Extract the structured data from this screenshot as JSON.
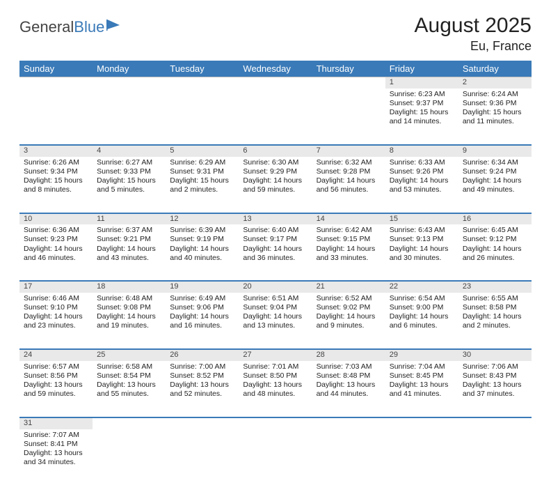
{
  "logo": {
    "text1": "General",
    "text2": "Blue"
  },
  "title": "August 2025",
  "location": "Eu, France",
  "dayHeaders": [
    "Sunday",
    "Monday",
    "Tuesday",
    "Wednesday",
    "Thursday",
    "Friday",
    "Saturday"
  ],
  "colors": {
    "headerBg": "#3a7ab8",
    "headerText": "#ffffff",
    "dayNumBg": "#e9e9e9",
    "rowDivider": "#3a7ab8",
    "pageBg": "#ffffff",
    "textColor": "#222222"
  },
  "weeks": [
    [
      null,
      null,
      null,
      null,
      null,
      {
        "n": "1",
        "sr": "Sunrise: 6:23 AM",
        "ss": "Sunset: 9:37 PM",
        "dl": "Daylight: 15 hours and 14 minutes."
      },
      {
        "n": "2",
        "sr": "Sunrise: 6:24 AM",
        "ss": "Sunset: 9:36 PM",
        "dl": "Daylight: 15 hours and 11 minutes."
      }
    ],
    [
      {
        "n": "3",
        "sr": "Sunrise: 6:26 AM",
        "ss": "Sunset: 9:34 PM",
        "dl": "Daylight: 15 hours and 8 minutes."
      },
      {
        "n": "4",
        "sr": "Sunrise: 6:27 AM",
        "ss": "Sunset: 9:33 PM",
        "dl": "Daylight: 15 hours and 5 minutes."
      },
      {
        "n": "5",
        "sr": "Sunrise: 6:29 AM",
        "ss": "Sunset: 9:31 PM",
        "dl": "Daylight: 15 hours and 2 minutes."
      },
      {
        "n": "6",
        "sr": "Sunrise: 6:30 AM",
        "ss": "Sunset: 9:29 PM",
        "dl": "Daylight: 14 hours and 59 minutes."
      },
      {
        "n": "7",
        "sr": "Sunrise: 6:32 AM",
        "ss": "Sunset: 9:28 PM",
        "dl": "Daylight: 14 hours and 56 minutes."
      },
      {
        "n": "8",
        "sr": "Sunrise: 6:33 AM",
        "ss": "Sunset: 9:26 PM",
        "dl": "Daylight: 14 hours and 53 minutes."
      },
      {
        "n": "9",
        "sr": "Sunrise: 6:34 AM",
        "ss": "Sunset: 9:24 PM",
        "dl": "Daylight: 14 hours and 49 minutes."
      }
    ],
    [
      {
        "n": "10",
        "sr": "Sunrise: 6:36 AM",
        "ss": "Sunset: 9:23 PM",
        "dl": "Daylight: 14 hours and 46 minutes."
      },
      {
        "n": "11",
        "sr": "Sunrise: 6:37 AM",
        "ss": "Sunset: 9:21 PM",
        "dl": "Daylight: 14 hours and 43 minutes."
      },
      {
        "n": "12",
        "sr": "Sunrise: 6:39 AM",
        "ss": "Sunset: 9:19 PM",
        "dl": "Daylight: 14 hours and 40 minutes."
      },
      {
        "n": "13",
        "sr": "Sunrise: 6:40 AM",
        "ss": "Sunset: 9:17 PM",
        "dl": "Daylight: 14 hours and 36 minutes."
      },
      {
        "n": "14",
        "sr": "Sunrise: 6:42 AM",
        "ss": "Sunset: 9:15 PM",
        "dl": "Daylight: 14 hours and 33 minutes."
      },
      {
        "n": "15",
        "sr": "Sunrise: 6:43 AM",
        "ss": "Sunset: 9:13 PM",
        "dl": "Daylight: 14 hours and 30 minutes."
      },
      {
        "n": "16",
        "sr": "Sunrise: 6:45 AM",
        "ss": "Sunset: 9:12 PM",
        "dl": "Daylight: 14 hours and 26 minutes."
      }
    ],
    [
      {
        "n": "17",
        "sr": "Sunrise: 6:46 AM",
        "ss": "Sunset: 9:10 PM",
        "dl": "Daylight: 14 hours and 23 minutes."
      },
      {
        "n": "18",
        "sr": "Sunrise: 6:48 AM",
        "ss": "Sunset: 9:08 PM",
        "dl": "Daylight: 14 hours and 19 minutes."
      },
      {
        "n": "19",
        "sr": "Sunrise: 6:49 AM",
        "ss": "Sunset: 9:06 PM",
        "dl": "Daylight: 14 hours and 16 minutes."
      },
      {
        "n": "20",
        "sr": "Sunrise: 6:51 AM",
        "ss": "Sunset: 9:04 PM",
        "dl": "Daylight: 14 hours and 13 minutes."
      },
      {
        "n": "21",
        "sr": "Sunrise: 6:52 AM",
        "ss": "Sunset: 9:02 PM",
        "dl": "Daylight: 14 hours and 9 minutes."
      },
      {
        "n": "22",
        "sr": "Sunrise: 6:54 AM",
        "ss": "Sunset: 9:00 PM",
        "dl": "Daylight: 14 hours and 6 minutes."
      },
      {
        "n": "23",
        "sr": "Sunrise: 6:55 AM",
        "ss": "Sunset: 8:58 PM",
        "dl": "Daylight: 14 hours and 2 minutes."
      }
    ],
    [
      {
        "n": "24",
        "sr": "Sunrise: 6:57 AM",
        "ss": "Sunset: 8:56 PM",
        "dl": "Daylight: 13 hours and 59 minutes."
      },
      {
        "n": "25",
        "sr": "Sunrise: 6:58 AM",
        "ss": "Sunset: 8:54 PM",
        "dl": "Daylight: 13 hours and 55 minutes."
      },
      {
        "n": "26",
        "sr": "Sunrise: 7:00 AM",
        "ss": "Sunset: 8:52 PM",
        "dl": "Daylight: 13 hours and 52 minutes."
      },
      {
        "n": "27",
        "sr": "Sunrise: 7:01 AM",
        "ss": "Sunset: 8:50 PM",
        "dl": "Daylight: 13 hours and 48 minutes."
      },
      {
        "n": "28",
        "sr": "Sunrise: 7:03 AM",
        "ss": "Sunset: 8:48 PM",
        "dl": "Daylight: 13 hours and 44 minutes."
      },
      {
        "n": "29",
        "sr": "Sunrise: 7:04 AM",
        "ss": "Sunset: 8:45 PM",
        "dl": "Daylight: 13 hours and 41 minutes."
      },
      {
        "n": "30",
        "sr": "Sunrise: 7:06 AM",
        "ss": "Sunset: 8:43 PM",
        "dl": "Daylight: 13 hours and 37 minutes."
      }
    ],
    [
      {
        "n": "31",
        "sr": "Sunrise: 7:07 AM",
        "ss": "Sunset: 8:41 PM",
        "dl": "Daylight: 13 hours and 34 minutes."
      },
      null,
      null,
      null,
      null,
      null,
      null
    ]
  ]
}
